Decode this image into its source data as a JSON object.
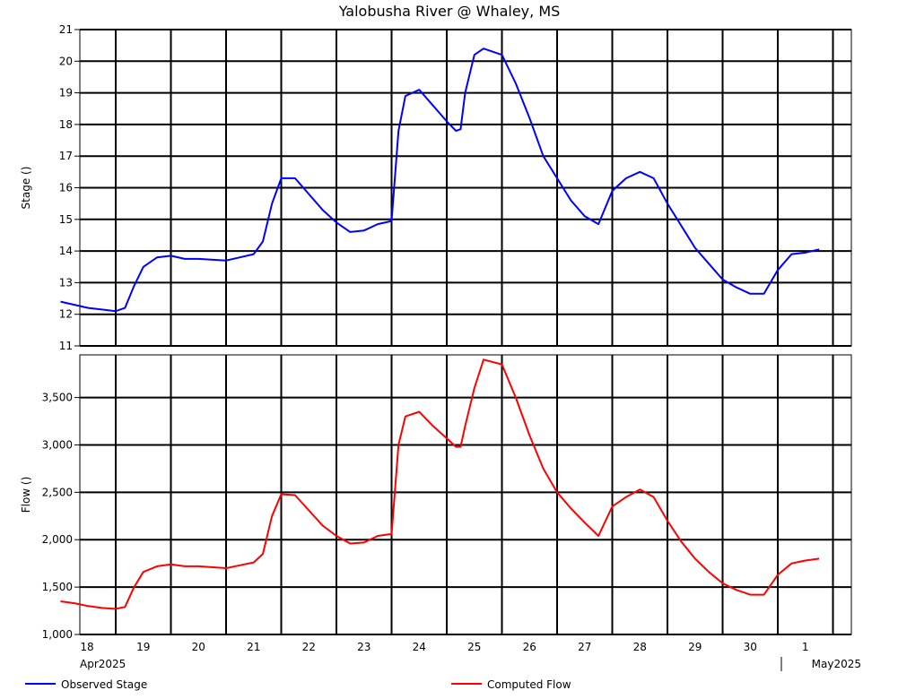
{
  "chart_data": {
    "type": "line",
    "title": "Yalobusha River @ Whaley, MS",
    "x_axis": {
      "day_labels": [
        "18",
        "19",
        "20",
        "21",
        "22",
        "23",
        "24",
        "25",
        "26",
        "27",
        "28",
        "29",
        "30",
        "1"
      ],
      "month_label_start": "Apr2025",
      "month_label_end": "May2025"
    },
    "panels": [
      {
        "ylabel": "Stage ()",
        "ylim": [
          11,
          21
        ],
        "yticks": [
          11,
          12,
          13,
          14,
          15,
          16,
          17,
          18,
          19,
          20,
          21
        ],
        "ytick_labels": [
          "11",
          "12",
          "13",
          "14",
          "15",
          "16",
          "17",
          "18",
          "19",
          "20",
          "21"
        ],
        "series": [
          {
            "name": "Observed Stage",
            "color": "#0000ff",
            "x": [
              "Apr 18 00:00",
              "Apr 18 06:00",
              "Apr 18 12:00",
              "Apr 18 18:00",
              "Apr 19 00:00",
              "Apr 19 04:00",
              "Apr 19 08:00",
              "Apr 19 12:00",
              "Apr 19 18:00",
              "Apr 20 00:00",
              "Apr 20 06:00",
              "Apr 20 12:00",
              "Apr 21 00:00",
              "Apr 21 06:00",
              "Apr 21 12:00",
              "Apr 21 16:00",
              "Apr 21 20:00",
              "Apr 22 00:00",
              "Apr 22 06:00",
              "Apr 22 12:00",
              "Apr 22 18:00",
              "Apr 23 00:00",
              "Apr 23 06:00",
              "Apr 23 12:00",
              "Apr 23 18:00",
              "Apr 24 00:00",
              "Apr 24 03:00",
              "Apr 24 06:00",
              "Apr 24 12:00",
              "Apr 24 18:00",
              "Apr 25 00:00",
              "Apr 25 04:00",
              "Apr 25 06:00",
              "Apr 25 08:00",
              "Apr 25 12:00",
              "Apr 25 16:00",
              "Apr 26 00:00",
              "Apr 26 06:00",
              "Apr 26 12:00",
              "Apr 26 18:00",
              "Apr 27 00:00",
              "Apr 27 06:00",
              "Apr 27 12:00",
              "Apr 27 18:00",
              "Apr 28 00:00",
              "Apr 28 06:00",
              "Apr 28 12:00",
              "Apr 28 18:00",
              "Apr 29 00:00",
              "Apr 29 06:00",
              "Apr 29 12:00",
              "Apr 29 18:00",
              "Apr 30 00:00",
              "Apr 30 06:00",
              "Apr 30 12:00",
              "Apr 30 18:00",
              "May 1 00:00",
              "May 1 06:00",
              "May 1 12:00",
              "May 1 18:00"
            ],
            "y": [
              12.4,
              12.3,
              12.2,
              12.15,
              12.1,
              12.2,
              12.9,
              13.5,
              13.8,
              13.85,
              13.75,
              13.75,
              13.7,
              13.8,
              13.9,
              14.3,
              15.5,
              16.3,
              16.3,
              15.8,
              15.3,
              14.9,
              14.6,
              14.65,
              14.85,
              14.95,
              17.8,
              18.9,
              19.1,
              18.6,
              18.1,
              17.8,
              17.85,
              19.0,
              20.2,
              20.4,
              20.2,
              19.3,
              18.2,
              17.0,
              16.3,
              15.6,
              15.1,
              14.85,
              15.9,
              16.3,
              16.5,
              16.3,
              15.5,
              14.8,
              14.1,
              13.6,
              13.1,
              12.85,
              12.65,
              12.65,
              13.4,
              13.9,
              13.95,
              14.05
            ]
          }
        ]
      },
      {
        "ylabel": "Flow ()",
        "ylim": [
          1000,
          3950
        ],
        "yticks": [
          1000,
          1500,
          2000,
          2500,
          3000,
          3500
        ],
        "ytick_labels": [
          "1,000",
          "1,500",
          "2,000",
          "2,500",
          "3,000",
          "3,500"
        ],
        "series": [
          {
            "name": "Computed Flow",
            "color": "#ff0000",
            "x": [
              "Apr 18 00:00",
              "Apr 18 06:00",
              "Apr 18 12:00",
              "Apr 18 18:00",
              "Apr 19 00:00",
              "Apr 19 04:00",
              "Apr 19 08:00",
              "Apr 19 12:00",
              "Apr 19 18:00",
              "Apr 20 00:00",
              "Apr 20 06:00",
              "Apr 20 12:00",
              "Apr 21 00:00",
              "Apr 21 06:00",
              "Apr 21 12:00",
              "Apr 21 16:00",
              "Apr 21 20:00",
              "Apr 22 00:00",
              "Apr 22 06:00",
              "Apr 22 12:00",
              "Apr 22 18:00",
              "Apr 23 00:00",
              "Apr 23 06:00",
              "Apr 23 12:00",
              "Apr 23 18:00",
              "Apr 24 00:00",
              "Apr 24 03:00",
              "Apr 24 06:00",
              "Apr 24 12:00",
              "Apr 24 18:00",
              "Apr 25 00:00",
              "Apr 25 04:00",
              "Apr 25 06:00",
              "Apr 25 08:00",
              "Apr 25 12:00",
              "Apr 25 16:00",
              "Apr 26 00:00",
              "Apr 26 06:00",
              "Apr 26 12:00",
              "Apr 26 18:00",
              "Apr 27 00:00",
              "Apr 27 06:00",
              "Apr 27 12:00",
              "Apr 27 18:00",
              "Apr 28 00:00",
              "Apr 28 06:00",
              "Apr 28 12:00",
              "Apr 28 18:00",
              "Apr 29 00:00",
              "Apr 29 06:00",
              "Apr 29 12:00",
              "Apr 29 18:00",
              "Apr 30 00:00",
              "Apr 30 06:00",
              "Apr 30 12:00",
              "Apr 30 18:00",
              "May 1 00:00",
              "May 1 06:00",
              "May 1 12:00",
              "May 1 18:00"
            ],
            "y": [
              1350,
              1330,
              1300,
              1280,
              1270,
              1290,
              1500,
              1660,
              1720,
              1740,
              1720,
              1720,
              1700,
              1730,
              1760,
              1850,
              2250,
              2480,
              2470,
              2310,
              2150,
              2040,
              1960,
              1970,
              2040,
              2060,
              3000,
              3300,
              3350,
              3200,
              3070,
              2980,
              2980,
              3200,
              3600,
              3900,
              3850,
              3500,
              3100,
              2750,
              2500,
              2330,
              2180,
              2040,
              2350,
              2450,
              2530,
              2450,
              2200,
              1980,
              1800,
              1660,
              1540,
              1470,
              1420,
              1420,
              1630,
              1750,
              1780,
              1800
            ]
          }
        ]
      }
    ],
    "legend": {
      "placement": "bottom",
      "entries": [
        "Observed Stage",
        "Computed Flow"
      ]
    },
    "grid": true
  }
}
